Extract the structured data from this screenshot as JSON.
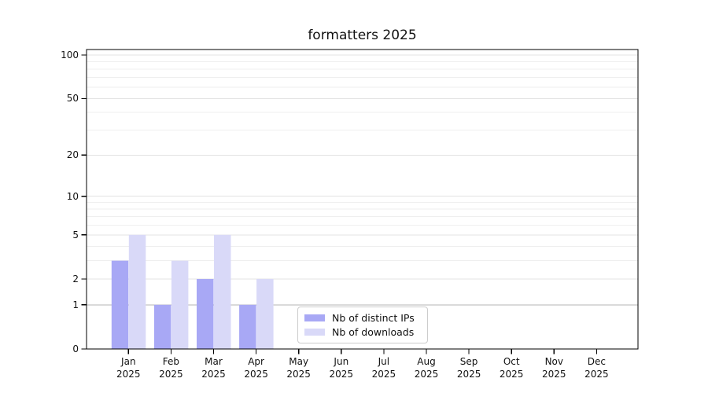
{
  "chart_data": {
    "type": "bar",
    "title": "formatters 2025",
    "categories": [
      "Jan",
      "Feb",
      "Mar",
      "Apr",
      "May",
      "Jun",
      "Jul",
      "Aug",
      "Sep",
      "Oct",
      "Nov",
      "Dec"
    ],
    "category_year": "2025",
    "series": [
      {
        "name": "Nb of distinct IPs",
        "color": "#a8a8f5",
        "values": [
          3,
          1,
          2,
          1,
          0,
          0,
          0,
          0,
          0,
          0,
          0,
          0
        ]
      },
      {
        "name": "Nb of downloads",
        "color": "#d9d9f8",
        "values": [
          5,
          3,
          5,
          2,
          0,
          0,
          0,
          0,
          0,
          0,
          0,
          0
        ]
      }
    ],
    "y_scale": "log10(1+v)",
    "y_ticks": [
      0,
      1,
      2,
      5,
      10,
      20,
      50,
      100
    ],
    "minor_gridlines": [
      3,
      4,
      6,
      7,
      8,
      9,
      30,
      40,
      60,
      70,
      80,
      90
    ],
    "ylim": [
      0,
      110
    ],
    "grid": "on",
    "legend_position": "bottom-center",
    "colors": {
      "grid_major": "#e3e3e3",
      "grid_minor": "#efefef",
      "grid_baseline_one": "#b4b4b4",
      "spine": "#000000",
      "text": "#111111",
      "background": "#ffffff"
    }
  }
}
